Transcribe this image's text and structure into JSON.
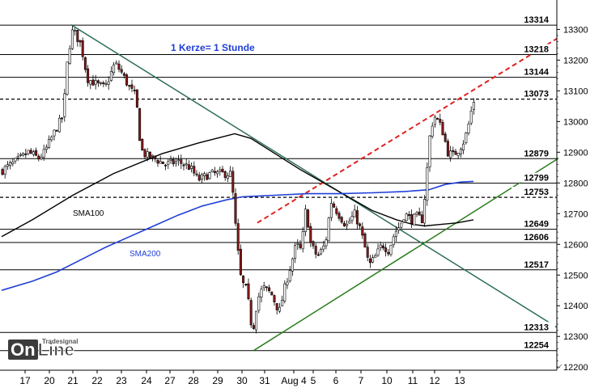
{
  "chart_data": {
    "type": "candlestick",
    "annotation": "1 Kerze= 1 Stunde",
    "ylim": [
      12190,
      13330
    ],
    "y_ticks": [
      12200,
      12300,
      12400,
      12500,
      12600,
      12700,
      12800,
      12900,
      13000,
      13100,
      13200,
      13300
    ],
    "x_labels": [
      "17",
      "20",
      "21",
      "22",
      "23",
      "24",
      "27",
      "28",
      "29",
      "30",
      "31",
      "Aug 4",
      "5",
      "6",
      "7",
      "10",
      "11",
      "12",
      "13"
    ],
    "horizontal_levels": [
      {
        "value": 13314,
        "style": "solid"
      },
      {
        "value": 13218,
        "style": "solid"
      },
      {
        "value": 13144,
        "style": "solid"
      },
      {
        "value": 13073,
        "style": "dashed"
      },
      {
        "value": 12879,
        "style": "solid"
      },
      {
        "value": 12799,
        "style": "solid"
      },
      {
        "value": 12753,
        "style": "dashed"
      },
      {
        "value": 12649,
        "style": "solid"
      },
      {
        "value": 12606,
        "style": "solid"
      },
      {
        "value": 12517,
        "style": "solid"
      },
      {
        "value": 12313,
        "style": "solid"
      },
      {
        "value": 12254,
        "style": "solid"
      }
    ],
    "series": [
      {
        "name": "SMA100",
        "color": "#000000"
      },
      {
        "name": "SMA200",
        "color": "#1f3fd6"
      }
    ],
    "colors": {
      "up": "#ffffff",
      "down": "#8b1a1a",
      "wick": "#000000",
      "trend_down": "#2c6e55",
      "trend_up": "#2b7d1e",
      "channel": "#e02020",
      "axis_bg": "#ffffff",
      "box": "#cccccc"
    }
  },
  "watermark": {
    "brand": "OnLine",
    "brand_on": "On",
    "brand_line": "Line",
    "vendor": "Tradesignal"
  }
}
